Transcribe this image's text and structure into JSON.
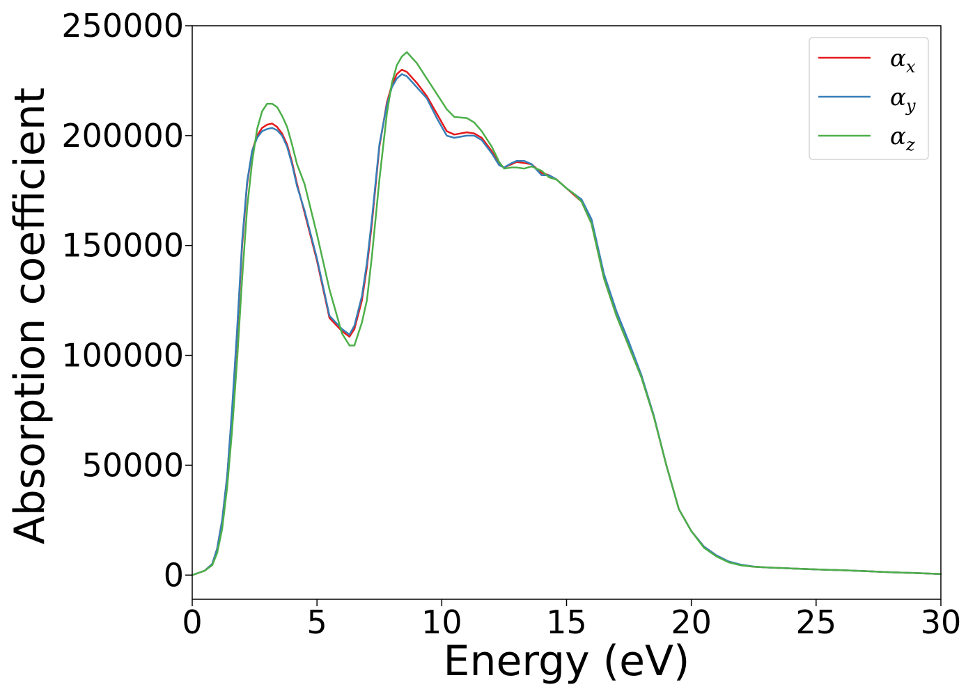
{
  "chart_data": {
    "type": "line",
    "title": "",
    "xlabel": "Energy (eV)",
    "ylabel": "Absorption coefficient",
    "xlim": [
      0,
      30
    ],
    "ylim": [
      -11000,
      250000
    ],
    "xticks": [
      0,
      5,
      10,
      15,
      20,
      25,
      30
    ],
    "yticks": [
      0,
      50000,
      100000,
      150000,
      200000,
      250000
    ],
    "grid": false,
    "legend_position": "top-right",
    "series": [
      {
        "name": "αx",
        "symbol": "α",
        "subscript": "x",
        "color": "#e41a1c",
        "x": [
          0,
          0.5,
          0.8,
          1.0,
          1.2,
          1.4,
          1.6,
          1.8,
          2.0,
          2.2,
          2.4,
          2.6,
          2.8,
          3.0,
          3.2,
          3.4,
          3.6,
          3.8,
          4.0,
          4.2,
          4.5,
          5.0,
          5.5,
          6.0,
          6.3,
          6.5,
          6.8,
          7.0,
          7.2,
          7.5,
          7.8,
          8.0,
          8.2,
          8.4,
          8.6,
          9.0,
          9.4,
          9.8,
          10.2,
          10.5,
          11.0,
          11.3,
          11.6,
          12.0,
          12.3,
          12.5,
          12.8,
          13.0,
          13.3,
          13.6,
          14.0,
          14.3,
          14.6,
          15.0,
          15.3,
          15.6,
          16.0,
          16.5,
          17.0,
          17.5,
          18.0,
          18.5,
          19.0,
          19.5,
          20.0,
          20.5,
          21.0,
          21.5,
          22.0,
          22.5,
          23.0,
          24.0,
          25.0,
          26.0,
          27.0,
          28.0,
          29.0,
          30.0
        ],
        "y": [
          0,
          2000,
          5000,
          12000,
          25000,
          45000,
          75000,
          110000,
          150000,
          178000,
          193000,
          200000,
          203500,
          205000,
          205500,
          204000,
          201000,
          196000,
          188000,
          178000,
          165000,
          143000,
          117000,
          111000,
          108500,
          112000,
          125000,
          140000,
          160000,
          195000,
          215000,
          223000,
          228000,
          230000,
          229000,
          224000,
          218000,
          210000,
          202000,
          200500,
          201500,
          201000,
          199000,
          193000,
          187000,
          185500,
          187000,
          188000,
          187500,
          187000,
          183000,
          182000,
          180000,
          176000,
          173000,
          170000,
          160000,
          135000,
          118000,
          104000,
          90000,
          72000,
          50000,
          30000,
          20000,
          13000,
          9000,
          6000,
          4500,
          3800,
          3500,
          3000,
          2600,
          2200,
          1800,
          1300,
          900,
          500
        ]
      },
      {
        "name": "αy",
        "symbol": "α",
        "subscript": "y",
        "color": "#377eb8",
        "x": [
          0,
          0.5,
          0.8,
          1.0,
          1.2,
          1.4,
          1.6,
          1.8,
          2.0,
          2.2,
          2.4,
          2.6,
          2.8,
          3.0,
          3.2,
          3.4,
          3.6,
          3.8,
          4.0,
          4.2,
          4.5,
          5.0,
          5.5,
          6.0,
          6.3,
          6.5,
          6.8,
          7.0,
          7.2,
          7.5,
          7.8,
          8.0,
          8.2,
          8.4,
          8.6,
          9.0,
          9.4,
          9.8,
          10.2,
          10.5,
          11.0,
          11.3,
          11.6,
          12.0,
          12.3,
          12.5,
          12.8,
          13.0,
          13.3,
          13.6,
          14.0,
          14.3,
          14.6,
          15.0,
          15.3,
          15.6,
          16.0,
          16.5,
          17.0,
          17.5,
          18.0,
          18.5,
          19.0,
          19.5,
          20.0,
          20.5,
          21.0,
          21.5,
          22.0,
          22.5,
          23.0,
          24.0,
          25.0,
          26.0,
          27.0,
          28.0,
          29.0,
          30.0
        ],
        "y": [
          0,
          2000,
          5000,
          12000,
          25000,
          45000,
          76000,
          112000,
          152000,
          179000,
          193000,
          199000,
          202000,
          203000,
          203500,
          202500,
          200000,
          195000,
          187000,
          177000,
          166000,
          144000,
          118000,
          112000,
          109500,
          113500,
          127000,
          142000,
          162000,
          196000,
          214000,
          222000,
          226000,
          228000,
          227000,
          222000,
          217000,
          208000,
          200000,
          199000,
          200000,
          200000,
          198000,
          192000,
          186500,
          185500,
          187500,
          188500,
          188500,
          187000,
          182000,
          182000,
          180000,
          176000,
          173500,
          171000,
          162000,
          137000,
          120000,
          106000,
          91000,
          72500,
          50000,
          30000,
          20000,
          13000,
          9000,
          6200,
          4700,
          3900,
          3500,
          3000,
          2600,
          2200,
          1800,
          1300,
          900,
          500
        ]
      },
      {
        "name": "αz",
        "symbol": "α",
        "subscript": "z",
        "color": "#4daf4a",
        "x": [
          0,
          0.5,
          0.8,
          1.0,
          1.2,
          1.4,
          1.6,
          1.8,
          2.0,
          2.2,
          2.4,
          2.6,
          2.8,
          3.0,
          3.2,
          3.4,
          3.6,
          3.8,
          4.0,
          4.2,
          4.5,
          5.0,
          5.5,
          6.0,
          6.3,
          6.5,
          6.8,
          7.0,
          7.2,
          7.5,
          7.8,
          8.0,
          8.2,
          8.4,
          8.6,
          9.0,
          9.4,
          9.8,
          10.2,
          10.5,
          11.0,
          11.3,
          11.6,
          12.0,
          12.3,
          12.5,
          12.8,
          13.0,
          13.3,
          13.6,
          14.0,
          14.3,
          14.6,
          15.0,
          15.3,
          15.6,
          16.0,
          16.5,
          17.0,
          17.5,
          18.0,
          18.5,
          19.0,
          19.5,
          20.0,
          20.5,
          21.0,
          21.5,
          22.0,
          22.5,
          23.0,
          24.0,
          25.0,
          26.0,
          27.0,
          28.0,
          29.0,
          30.0
        ],
        "y": [
          0,
          2000,
          4500,
          10000,
          21000,
          40000,
          66000,
          98000,
          135000,
          167000,
          188000,
          203000,
          211000,
          214500,
          214500,
          213000,
          209000,
          204000,
          196000,
          187000,
          178000,
          155000,
          130000,
          110000,
          104500,
          104500,
          115000,
          125000,
          145000,
          180000,
          210000,
          224000,
          232000,
          236000,
          238000,
          233000,
          226000,
          219000,
          212000,
          208500,
          208000,
          206000,
          202000,
          195000,
          188000,
          185000,
          185500,
          185500,
          185000,
          186000,
          184000,
          181000,
          180000,
          176000,
          173500,
          170000,
          160000,
          135000,
          118000,
          104000,
          90000,
          72000,
          50000,
          30000,
          20000,
          12500,
          8500,
          5800,
          4400,
          3800,
          3500,
          3000,
          2600,
          2200,
          1800,
          1300,
          900,
          500
        ]
      }
    ]
  }
}
